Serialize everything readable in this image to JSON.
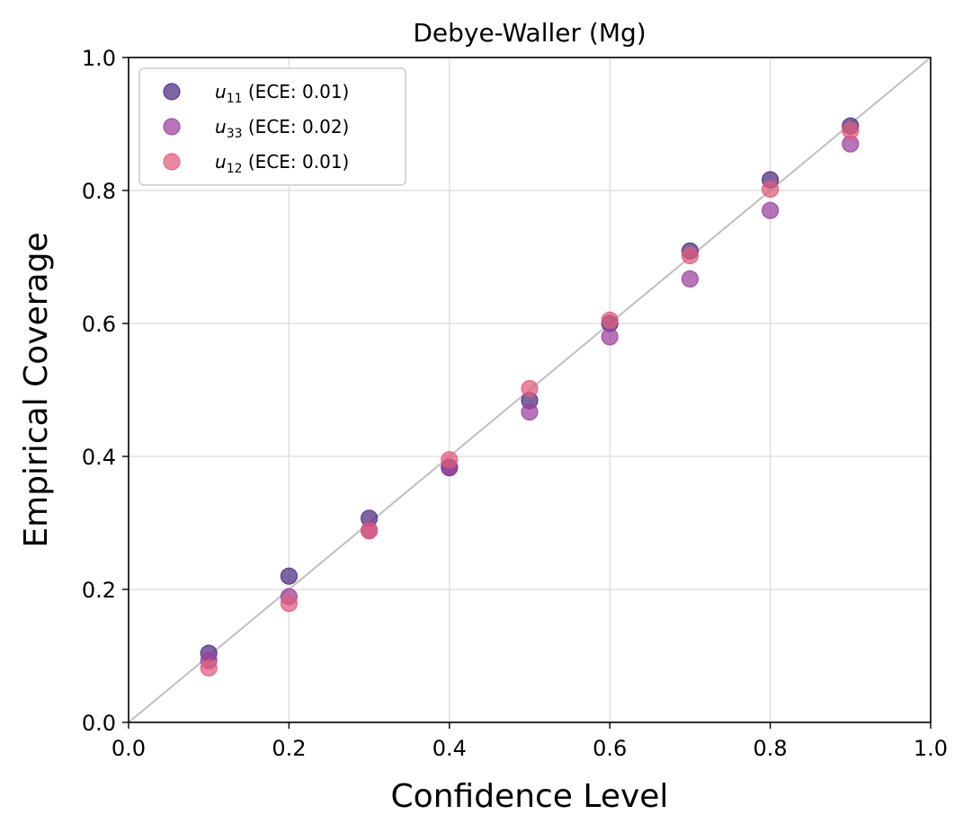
{
  "chart_data": {
    "type": "scatter",
    "title": "Debye-Waller (Mg)",
    "xlabel": "Confidence Level",
    "ylabel": "Empirical Coverage",
    "xlim": [
      0.0,
      1.0
    ],
    "ylim": [
      0.0,
      1.0
    ],
    "xticks": [
      "0.0",
      "0.2",
      "0.4",
      "0.6",
      "0.8",
      "1.0"
    ],
    "yticks": [
      "0.0",
      "0.2",
      "0.4",
      "0.6",
      "0.8",
      "1.0"
    ],
    "grid": true,
    "legend_position": "upper-left",
    "reference_line": {
      "x": [
        0,
        1
      ],
      "y": [
        0,
        1
      ],
      "color": "#bfbfbf"
    },
    "x": [
      0.1,
      0.2,
      0.3,
      0.4,
      0.5,
      0.6,
      0.7,
      0.8,
      0.9
    ],
    "series": [
      {
        "name": "u_11 (ECE: 0.01)",
        "var": "u",
        "sub": "11",
        "suffix": " (ECE: 0.01)",
        "color": "#4b2a7f",
        "values": [
          0.104,
          0.22,
          0.307,
          0.383,
          0.484,
          0.6,
          0.709,
          0.816,
          0.897
        ]
      },
      {
        "name": "u_33 (ECE: 0.02)",
        "var": "u",
        "sub": "33",
        "suffix": " (ECE: 0.02)",
        "color": "#9b3f9e",
        "values": [
          0.093,
          0.189,
          0.289,
          0.384,
          0.467,
          0.58,
          0.667,
          0.77,
          0.87
        ]
      },
      {
        "name": "u_12 (ECE: 0.01)",
        "var": "u",
        "sub": "12",
        "suffix": " (ECE: 0.01)",
        "color": "#e05a79",
        "values": [
          0.082,
          0.179,
          0.288,
          0.395,
          0.502,
          0.605,
          0.702,
          0.802,
          0.89
        ]
      }
    ]
  }
}
